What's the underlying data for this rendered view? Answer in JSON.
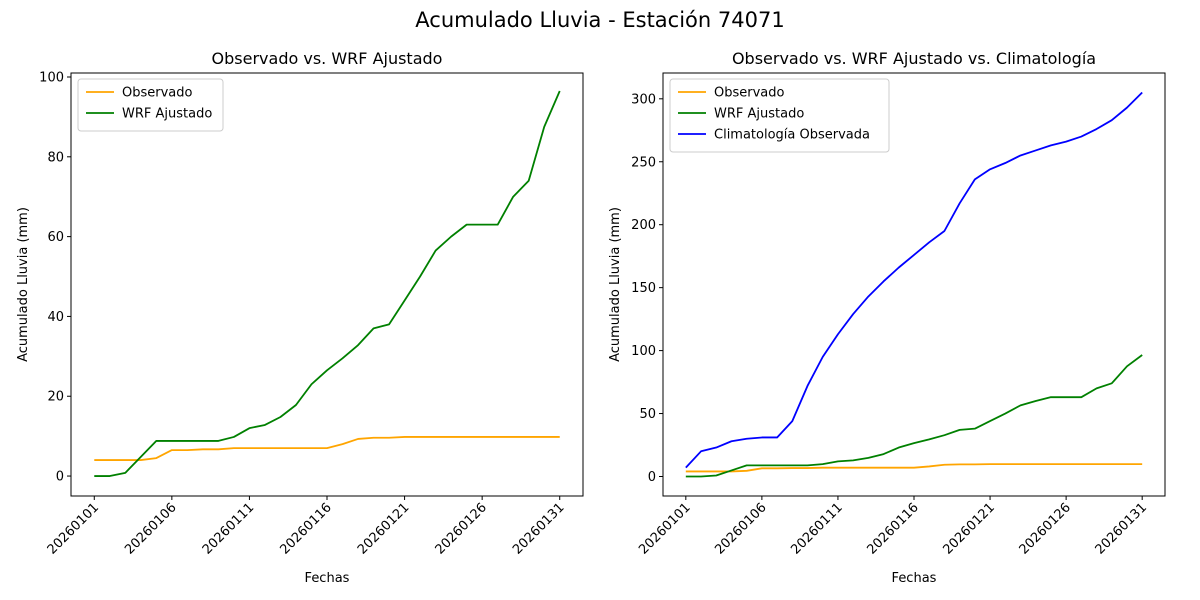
{
  "figure_title": "Acumulado Lluvia - Estación 74071",
  "chart_data": [
    {
      "type": "line",
      "title": "Observado vs. WRF Ajustado",
      "xlabel": "Fechas",
      "ylabel": "Acumulado Lluvia (mm)",
      "x": [
        "20260101",
        "20260102",
        "20260103",
        "20260104",
        "20260105",
        "20260106",
        "20260107",
        "20260108",
        "20260109",
        "20260110",
        "20260111",
        "20260112",
        "20260113",
        "20260114",
        "20260115",
        "20260116",
        "20260117",
        "20260118",
        "20260119",
        "20260120",
        "20260121",
        "20260122",
        "20260123",
        "20260124",
        "20260125",
        "20260126",
        "20260127",
        "20260128",
        "20260129",
        "20260130",
        "20260131"
      ],
      "xticks": [
        "20260101",
        "20260106",
        "20260111",
        "20260116",
        "20260121",
        "20260126",
        "20260131"
      ],
      "ylim": [
        -5,
        101
      ],
      "yticks": [
        0,
        20,
        40,
        60,
        80,
        100
      ],
      "grid": false,
      "legend": "top-left",
      "series": [
        {
          "name": "Observado",
          "color": "#ffa500",
          "values": [
            4,
            4,
            4,
            4,
            4.5,
            6.5,
            6.5,
            6.7,
            6.7,
            7,
            7,
            7,
            7,
            7,
            7,
            7,
            8,
            9.3,
            9.6,
            9.6,
            9.8,
            9.8,
            9.8,
            9.8,
            9.8,
            9.8,
            9.8,
            9.8,
            9.8,
            9.8,
            9.8
          ]
        },
        {
          "name": "WRF Ajustado",
          "color": "#008000",
          "values": [
            0,
            0,
            0.8,
            4.8,
            8.8,
            8.8,
            8.8,
            8.8,
            8.8,
            9.8,
            12,
            12.8,
            14.8,
            17.8,
            23,
            26.5,
            29.5,
            32.8,
            37,
            38,
            44,
            50,
            56.5,
            60,
            63,
            63,
            63,
            70,
            74,
            87.5,
            96.5
          ]
        }
      ]
    },
    {
      "type": "line",
      "title": "Observado vs. WRF Ajustado vs. Climatología",
      "xlabel": "Fechas",
      "ylabel": "Acumulado Lluvia (mm)",
      "x": [
        "20260101",
        "20260102",
        "20260103",
        "20260104",
        "20260105",
        "20260106",
        "20260107",
        "20260108",
        "20260109",
        "20260110",
        "20260111",
        "20260112",
        "20260113",
        "20260114",
        "20260115",
        "20260116",
        "20260117",
        "20260118",
        "20260119",
        "20260120",
        "20260121",
        "20260122",
        "20260123",
        "20260124",
        "20260125",
        "20260126",
        "20260127",
        "20260128",
        "20260129",
        "20260130",
        "20260131"
      ],
      "xticks": [
        "20260101",
        "20260106",
        "20260111",
        "20260116",
        "20260121",
        "20260126",
        "20260131"
      ],
      "ylim": [
        -15.5,
        320.5
      ],
      "yticks": [
        0,
        50,
        100,
        150,
        200,
        250,
        300
      ],
      "grid": false,
      "legend": "top-left",
      "series": [
        {
          "name": "Observado",
          "color": "#ffa500",
          "values": [
            4,
            4,
            4,
            4,
            4.5,
            6.5,
            6.5,
            6.7,
            6.7,
            7,
            7,
            7,
            7,
            7,
            7,
            7,
            8,
            9.3,
            9.6,
            9.6,
            9.8,
            9.8,
            9.8,
            9.8,
            9.8,
            9.8,
            9.8,
            9.8,
            9.8,
            9.8,
            9.8
          ]
        },
        {
          "name": "WRF Ajustado",
          "color": "#008000",
          "values": [
            0,
            0,
            0.8,
            4.8,
            8.8,
            8.8,
            8.8,
            8.8,
            8.8,
            9.8,
            12,
            12.8,
            14.8,
            17.8,
            23,
            26.5,
            29.5,
            32.8,
            37,
            38,
            44,
            50,
            56.5,
            60,
            63,
            63,
            63,
            70,
            74,
            87.5,
            96.5
          ]
        },
        {
          "name": "Climatología Observada",
          "color": "#0000ff",
          "values": [
            7,
            20,
            23,
            28,
            30,
            31,
            31,
            44,
            72,
            95,
            113,
            129,
            143,
            155,
            166,
            176,
            186,
            195,
            217,
            236,
            244,
            249,
            255,
            259,
            263,
            266,
            270,
            276,
            283,
            293,
            305
          ]
        }
      ]
    }
  ]
}
